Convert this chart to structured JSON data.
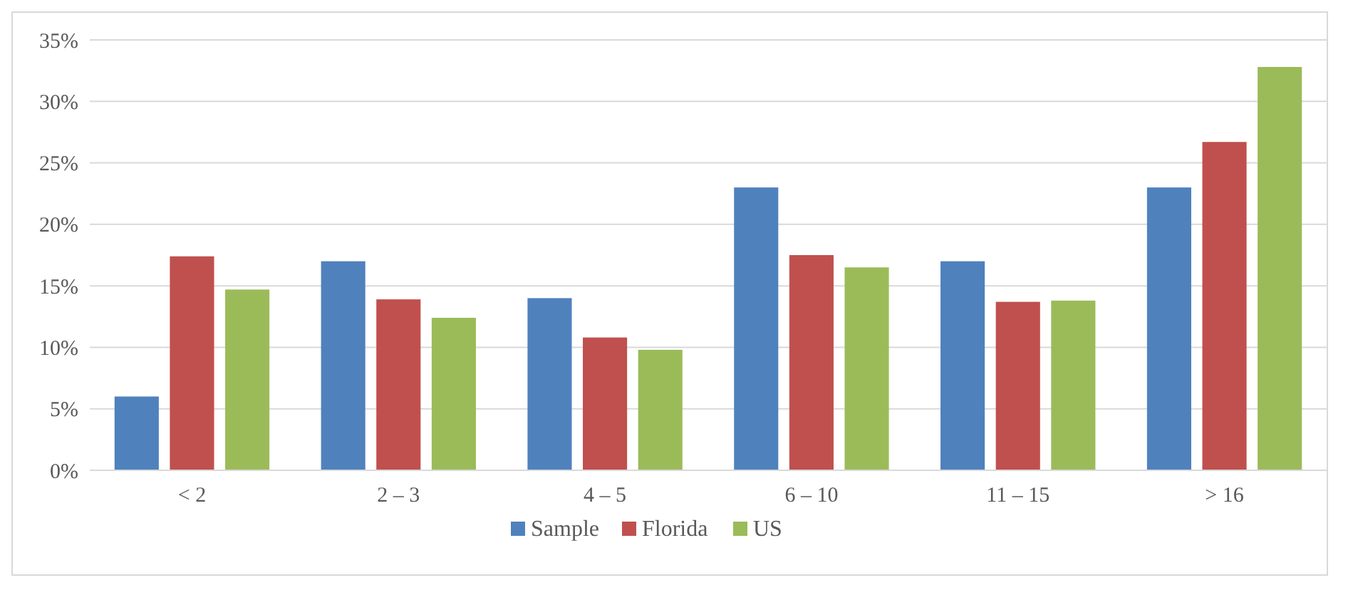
{
  "chart_data": {
    "type": "bar",
    "categories": [
      "< 2",
      "2 – 3",
      "4 – 5",
      "6 – 10",
      "11 – 15",
      "> 16"
    ],
    "series": [
      {
        "name": "Sample",
        "color": "#4f81bd",
        "values": [
          6,
          17,
          14,
          23,
          17,
          23
        ]
      },
      {
        "name": "Florida",
        "color": "#c0504d",
        "values": [
          17.4,
          13.9,
          10.8,
          17.5,
          13.7,
          26.7
        ]
      },
      {
        "name": "US",
        "color": "#9bbb59",
        "values": [
          14.7,
          12.4,
          9.8,
          16.5,
          13.8,
          32.8
        ]
      }
    ],
    "ylim": [
      0,
      35
    ],
    "yticks": [
      {
        "value": 0,
        "label": "0%"
      },
      {
        "value": 5,
        "label": "5%"
      },
      {
        "value": 10,
        "label": "10%"
      },
      {
        "value": 15,
        "label": "15%"
      },
      {
        "value": 20,
        "label": "20%"
      },
      {
        "value": 25,
        "label": "25%"
      },
      {
        "value": 30,
        "label": "30%"
      },
      {
        "value": 35,
        "label": "35%"
      }
    ],
    "grid": "y",
    "legend": "bottom"
  }
}
